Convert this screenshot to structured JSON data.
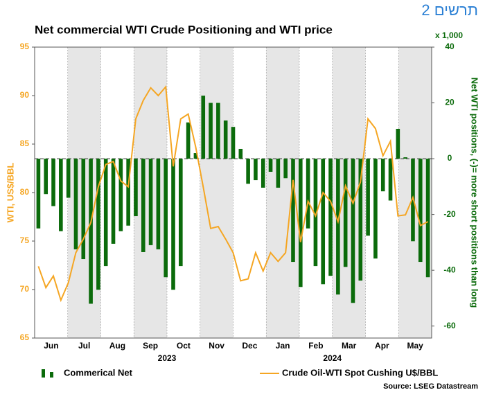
{
  "chart_data": {
    "type": "bar_line",
    "chart_number": "תרשים 2",
    "title": "Net commercial WTI Crude Positioning and WTI price",
    "y_label": "WTI, US$/BBL",
    "y2_label": "Net WTI positions, (-)= more short positions than long",
    "y2_unit": "x 1,000",
    "months": [
      "Jun",
      "Jul",
      "Aug",
      "Sep",
      "Oct",
      "Nov",
      "Dec",
      "Jan",
      "Feb",
      "Mar",
      "Apr",
      "May"
    ],
    "years": [
      "2023",
      "2024"
    ],
    "source": "Source: LSEG Datastream",
    "ylim": [
      65,
      95
    ],
    "yticks": [
      65,
      70,
      75,
      80,
      85,
      90,
      95
    ],
    "y2lim": [
      -64.3,
      40
    ],
    "y2ticks": [
      -60,
      -40,
      -20,
      0,
      20,
      40
    ],
    "series": [
      {
        "name": "Commerical Net",
        "color": "#0b6b0b",
        "axis": "y2",
        "kind": "bar",
        "values": [
          -25,
          -12.7,
          -17,
          -26,
          -14,
          -32.5,
          -36,
          -52,
          -47,
          -38.5,
          -30.5,
          -26,
          -24,
          -20.6,
          -33.5,
          -31,
          -32.5,
          -42.5,
          -47,
          -38.5,
          13,
          2,
          22.6,
          20,
          20,
          13.7,
          11.4,
          3.5,
          -9,
          -7.7,
          -10.4,
          -4.7,
          -10.4,
          -7,
          -37,
          -46,
          -25,
          -38.5,
          -45,
          -42,
          -48.7,
          -38.8,
          -51.7,
          -43.7,
          -27.6,
          -35.8,
          -11.7,
          -15,
          10.7,
          0.5,
          -29.6,
          -37,
          -42.5
        ]
      },
      {
        "name": "Crude Oil-WTI Spot Cushing U$/BBL",
        "color": "#f5a623",
        "axis": "y",
        "kind": "line",
        "values": [
          72.4,
          70.2,
          71.4,
          68.9,
          70.7,
          73.8,
          75.2,
          76.9,
          80.6,
          82.9,
          83.2,
          81.2,
          80.6,
          87.6,
          89.5,
          90.8,
          90.0,
          90.9,
          82.7,
          87.6,
          88.1,
          84.7,
          80.6,
          76.3,
          76.5,
          75.2,
          73.8,
          70.9,
          71.1,
          73.8,
          71.9,
          73.8,
          72.9,
          73.8,
          81.3,
          74.9,
          79.1,
          77.6,
          80.0,
          79.1,
          77.0,
          80.7,
          78.9,
          81.1,
          87.6,
          86.6,
          83.8,
          85.3,
          77.6,
          77.7,
          79.5,
          76.6,
          77.0
        ]
      }
    ]
  }
}
